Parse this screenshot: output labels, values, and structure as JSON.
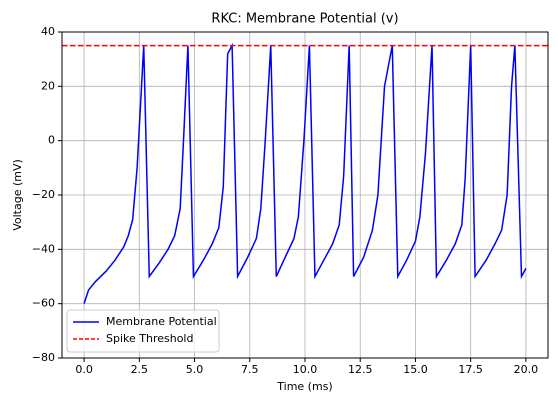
{
  "chart_data": {
    "type": "line",
    "title": "RKC: Membrane Potential (v)",
    "xlabel": "Time (ms)",
    "ylabel": "Voltage (mV)",
    "x": [
      0,
      0.2,
      0.5,
      1.0,
      1.4,
      1.8,
      2.0,
      2.2,
      2.4,
      2.7,
      2.95,
      3.4,
      3.8,
      4.1,
      4.35,
      4.5,
      4.7,
      4.95,
      5.4,
      5.8,
      6.1,
      6.3,
      6.5,
      6.7,
      6.95,
      7.4,
      7.8,
      8.0,
      8.2,
      8.45,
      8.7,
      9.1,
      9.5,
      9.7,
      9.95,
      10.2,
      10.45,
      10.85,
      11.25,
      11.55,
      11.75,
      12.0,
      12.2,
      12.65,
      13.05,
      13.3,
      13.6,
      13.95,
      14.2,
      14.6,
      15.0,
      15.2,
      15.45,
      15.75,
      15.95,
      16.4,
      16.8,
      17.1,
      17.25,
      17.5,
      17.7,
      18.2,
      18.6,
      18.9,
      19.15,
      19.35,
      19.5,
      19.8,
      20.0
    ],
    "series": [
      {
        "name": "Membrane Potential",
        "color": "#0000ff",
        "values": [
          -60,
          -55,
          -52,
          -48,
          -44,
          -39,
          -35,
          -29,
          -10,
          35,
          -50,
          -45,
          -40,
          -35,
          -25,
          0,
          35,
          -50,
          -44,
          -38,
          -32,
          -17,
          32,
          35,
          -50,
          -43,
          -36,
          -25,
          0,
          35,
          -50,
          -43,
          -36,
          -28,
          0,
          35,
          -50,
          -44,
          -38,
          -31,
          -13,
          35,
          -50,
          -43,
          -33,
          -20,
          20,
          35,
          -50,
          -44,
          -37,
          -28,
          -5,
          35,
          -50,
          -44,
          -38,
          -31,
          -14,
          35,
          -50,
          -44,
          -38,
          -33,
          -20,
          20,
          35,
          -50,
          -47
        ]
      }
    ],
    "hlines": [
      {
        "name": "Spike Threshold",
        "color": "#ff0000",
        "value": 35,
        "style": "dashed"
      }
    ],
    "xlim": [
      -1.0,
      21.0
    ],
    "ylim": [
      -80,
      40
    ],
    "xticks": [
      {
        "value": 0,
        "label": "0.0"
      },
      {
        "value": 2.5,
        "label": "2.5"
      },
      {
        "value": 5,
        "label": "5.0"
      },
      {
        "value": 7.5,
        "label": "7.5"
      },
      {
        "value": 10,
        "label": "10.0"
      },
      {
        "value": 12.5,
        "label": "12.5"
      },
      {
        "value": 15,
        "label": "15.0"
      },
      {
        "value": 17.5,
        "label": "17.5"
      },
      {
        "value": 20,
        "label": "20.0"
      }
    ],
    "yticks": [
      {
        "value": -80,
        "label": "−80"
      },
      {
        "value": -60,
        "label": "−60"
      },
      {
        "value": -40,
        "label": "−40"
      },
      {
        "value": -20,
        "label": "−20"
      },
      0,
      20,
      40
    ],
    "grid": true,
    "legend": "lower left"
  }
}
